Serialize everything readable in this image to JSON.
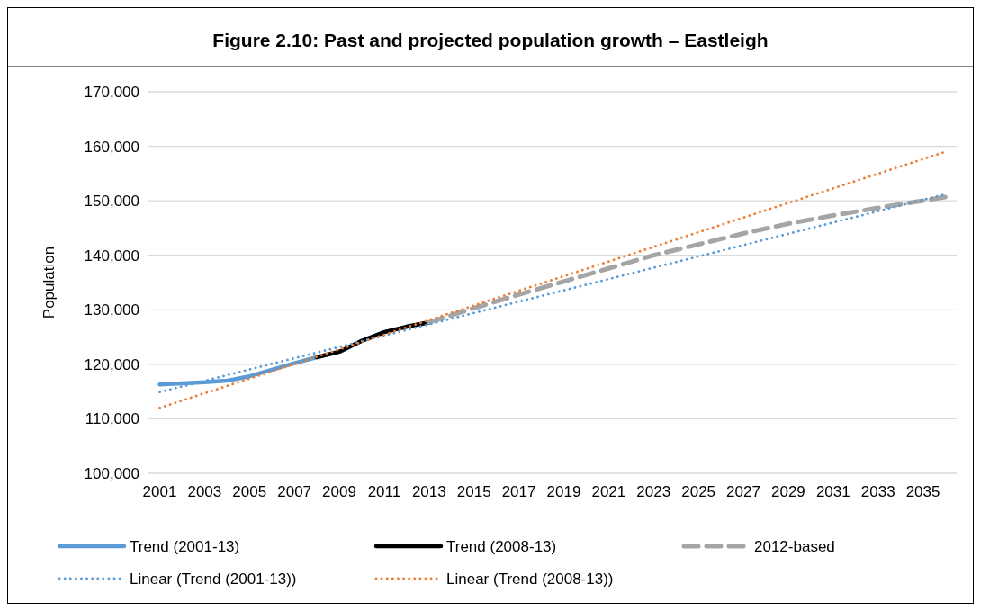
{
  "chart_data": {
    "type": "line",
    "title": "Figure 2.10: Past and projected population growth – Eastleigh",
    "ylabel": "Population",
    "xlim": [
      2000.5,
      2036.5
    ],
    "xticks": [
      2001,
      2003,
      2005,
      2007,
      2009,
      2011,
      2013,
      2015,
      2017,
      2019,
      2021,
      2023,
      2025,
      2027,
      2029,
      2031,
      2033,
      2035
    ],
    "ylim": [
      100000,
      170000
    ],
    "yticks": [
      {
        "value": 100000,
        "label": "100,000"
      },
      {
        "value": 110000,
        "label": "110,000"
      },
      {
        "value": 120000,
        "label": "120,000"
      },
      {
        "value": 130000,
        "label": "130,000"
      },
      {
        "value": 140000,
        "label": "140,000"
      },
      {
        "value": 150000,
        "label": "150,000"
      },
      {
        "value": 160000,
        "label": "160,000"
      },
      {
        "value": 170000,
        "label": "170,000"
      }
    ],
    "grid": "y",
    "legend": "bottom",
    "series": [
      {
        "name": "Trend (2001-13)",
        "color": "#5b9bd5",
        "line_style": "solid",
        "x": [
          2001,
          2002,
          2003,
          2004,
          2005,
          2006,
          2007,
          2008,
          2009,
          2010,
          2011,
          2012,
          2013
        ],
        "values": [
          116300,
          116500,
          116700,
          117000,
          117800,
          119000,
          120200,
          121300,
          122300,
          124300,
          125900,
          126900,
          127700
        ]
      },
      {
        "name": "Trend (2008-13)",
        "color": "#000000",
        "line_style": "solid",
        "x": [
          2008,
          2009,
          2010,
          2011,
          2012,
          2013
        ],
        "values": [
          121300,
          122300,
          124300,
          125900,
          126900,
          127700
        ]
      },
      {
        "name": "2012-based",
        "color": "#a5a5a5",
        "line_style": "dashed",
        "x": [
          2013,
          2015,
          2017,
          2019,
          2021,
          2023,
          2025,
          2027,
          2029,
          2031,
          2033,
          2036
        ],
        "values": [
          127700,
          130300,
          132800,
          135200,
          137600,
          140000,
          142000,
          144000,
          145800,
          147300,
          148700,
          150700
        ]
      },
      {
        "name": "Linear (Trend (2001-13))",
        "color": "#5b9bd5",
        "line_style": "dotted",
        "x": [
          2001,
          2036
        ],
        "values": [
          114900,
          151200
        ]
      },
      {
        "name": "Linear (Trend (2008-13))",
        "color": "#ed7d31",
        "line_style": "dotted",
        "x": [
          2001,
          2036
        ],
        "values": [
          112000,
          159000
        ]
      }
    ]
  }
}
